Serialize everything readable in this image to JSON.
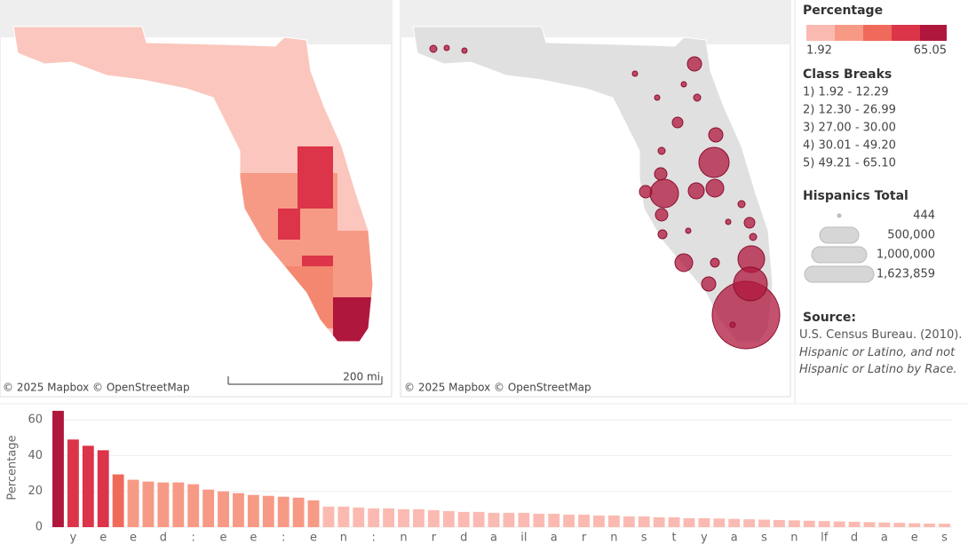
{
  "maps": {
    "left_attribution": "© 2025 Mapbox  © OpenStreetMap",
    "right_attribution": "© 2025 Mapbox  © OpenStreetMap",
    "scale": "200 mi"
  },
  "legend": {
    "percentage_title": "Percentage",
    "percentage_min": "1.92",
    "percentage_max": "65.05",
    "class_breaks_title": "Class Breaks",
    "class_breaks": [
      "1) 1.92 - 12.29",
      "2) 12.30 - 26.99",
      "3) 27.00 -  30.00",
      "4) 30.01 - 49.20",
      "5) 49.21 - 65.10"
    ],
    "size_title": "Hispanics Total",
    "sizes": [
      "444",
      "500,000",
      "1,000,000",
      "1,623,859"
    ],
    "source_title": "Source:",
    "source_text": "U.S. Census Bureau. (2010).",
    "source_italic": "Hispanic or Latino, and not Hispanic or Latino by Race."
  },
  "chart_data": {
    "type": "bar",
    "y_label": "Percentage",
    "categories": [
      null,
      "y",
      null,
      "e",
      null,
      "e",
      null,
      "d",
      null,
      ":",
      null,
      "e",
      null,
      "e",
      null,
      ":",
      null,
      "e",
      null,
      "n",
      null,
      ":",
      null,
      "n",
      null,
      "r",
      null,
      "d",
      null,
      "a",
      null,
      "il",
      null,
      "a",
      null,
      "r",
      null,
      "n",
      null,
      "s",
      null,
      "t",
      null,
      "y",
      null,
      "a",
      null,
      "s",
      null,
      "n",
      null,
      "lf",
      null,
      "d",
      null,
      "a",
      null,
      "e",
      null,
      "s"
    ],
    "values": [
      65.05,
      49,
      45.5,
      43,
      29.5,
      26.5,
      25.5,
      25,
      25,
      24,
      21,
      20,
      19,
      18,
      17.5,
      17,
      16.5,
      15,
      11.5,
      11.5,
      11,
      10.5,
      10.5,
      10,
      10,
      9.5,
      9,
      8.5,
      8.5,
      8,
      8,
      8,
      7.5,
      7.5,
      7,
      7,
      6.5,
      6.5,
      6,
      6,
      5.5,
      5.5,
      5,
      5,
      4.8,
      4.6,
      4.4,
      4.2,
      4,
      3.8,
      3.6,
      3.4,
      3.2,
      3,
      2.8,
      2.6,
      2.4,
      2.2,
      2.0,
      1.92
    ],
    "colors": [
      "#b0173d",
      "#dc3448",
      "#dc3448",
      "#dc3448",
      "#ef6a5a",
      "#f79a85",
      "#f79a85",
      "#f79a85",
      "#f79a85",
      "#f79a85",
      "#f79a85",
      "#f79a85",
      "#f79a85",
      "#f79a85",
      "#f79a85",
      "#f79a85",
      "#f79a85",
      "#f79a85",
      "#fbbab1",
      "#fbbab1",
      "#fbbab1",
      "#fbbab1",
      "#fbbab1",
      "#fbbab1",
      "#fbbab1",
      "#fbbab1",
      "#fbbab1",
      "#fbbab1",
      "#fbbab1",
      "#fbbab1",
      "#fbbab1",
      "#fbbab1",
      "#fbbab1",
      "#fbbab1",
      "#fbbab1",
      "#fbbab1",
      "#fbbab1",
      "#fbbab1",
      "#fbbab1",
      "#fbbab1",
      "#fbbab1",
      "#fbbab1",
      "#fbbab1",
      "#fbbab1",
      "#fbbab1",
      "#fbbab1",
      "#fbbab1",
      "#fbbab1",
      "#fbbab1",
      "#fbbab1",
      "#fbbab1",
      "#fbbab1",
      "#fbbab1",
      "#fbbab1",
      "#fbbab1",
      "#fbbab1",
      "#fbbab1",
      "#fbbab1",
      "#fbbab1",
      "#fbbab1"
    ],
    "ylim": [
      0,
      66
    ],
    "yticks": [
      0,
      20,
      40,
      60
    ],
    "grid": true
  }
}
